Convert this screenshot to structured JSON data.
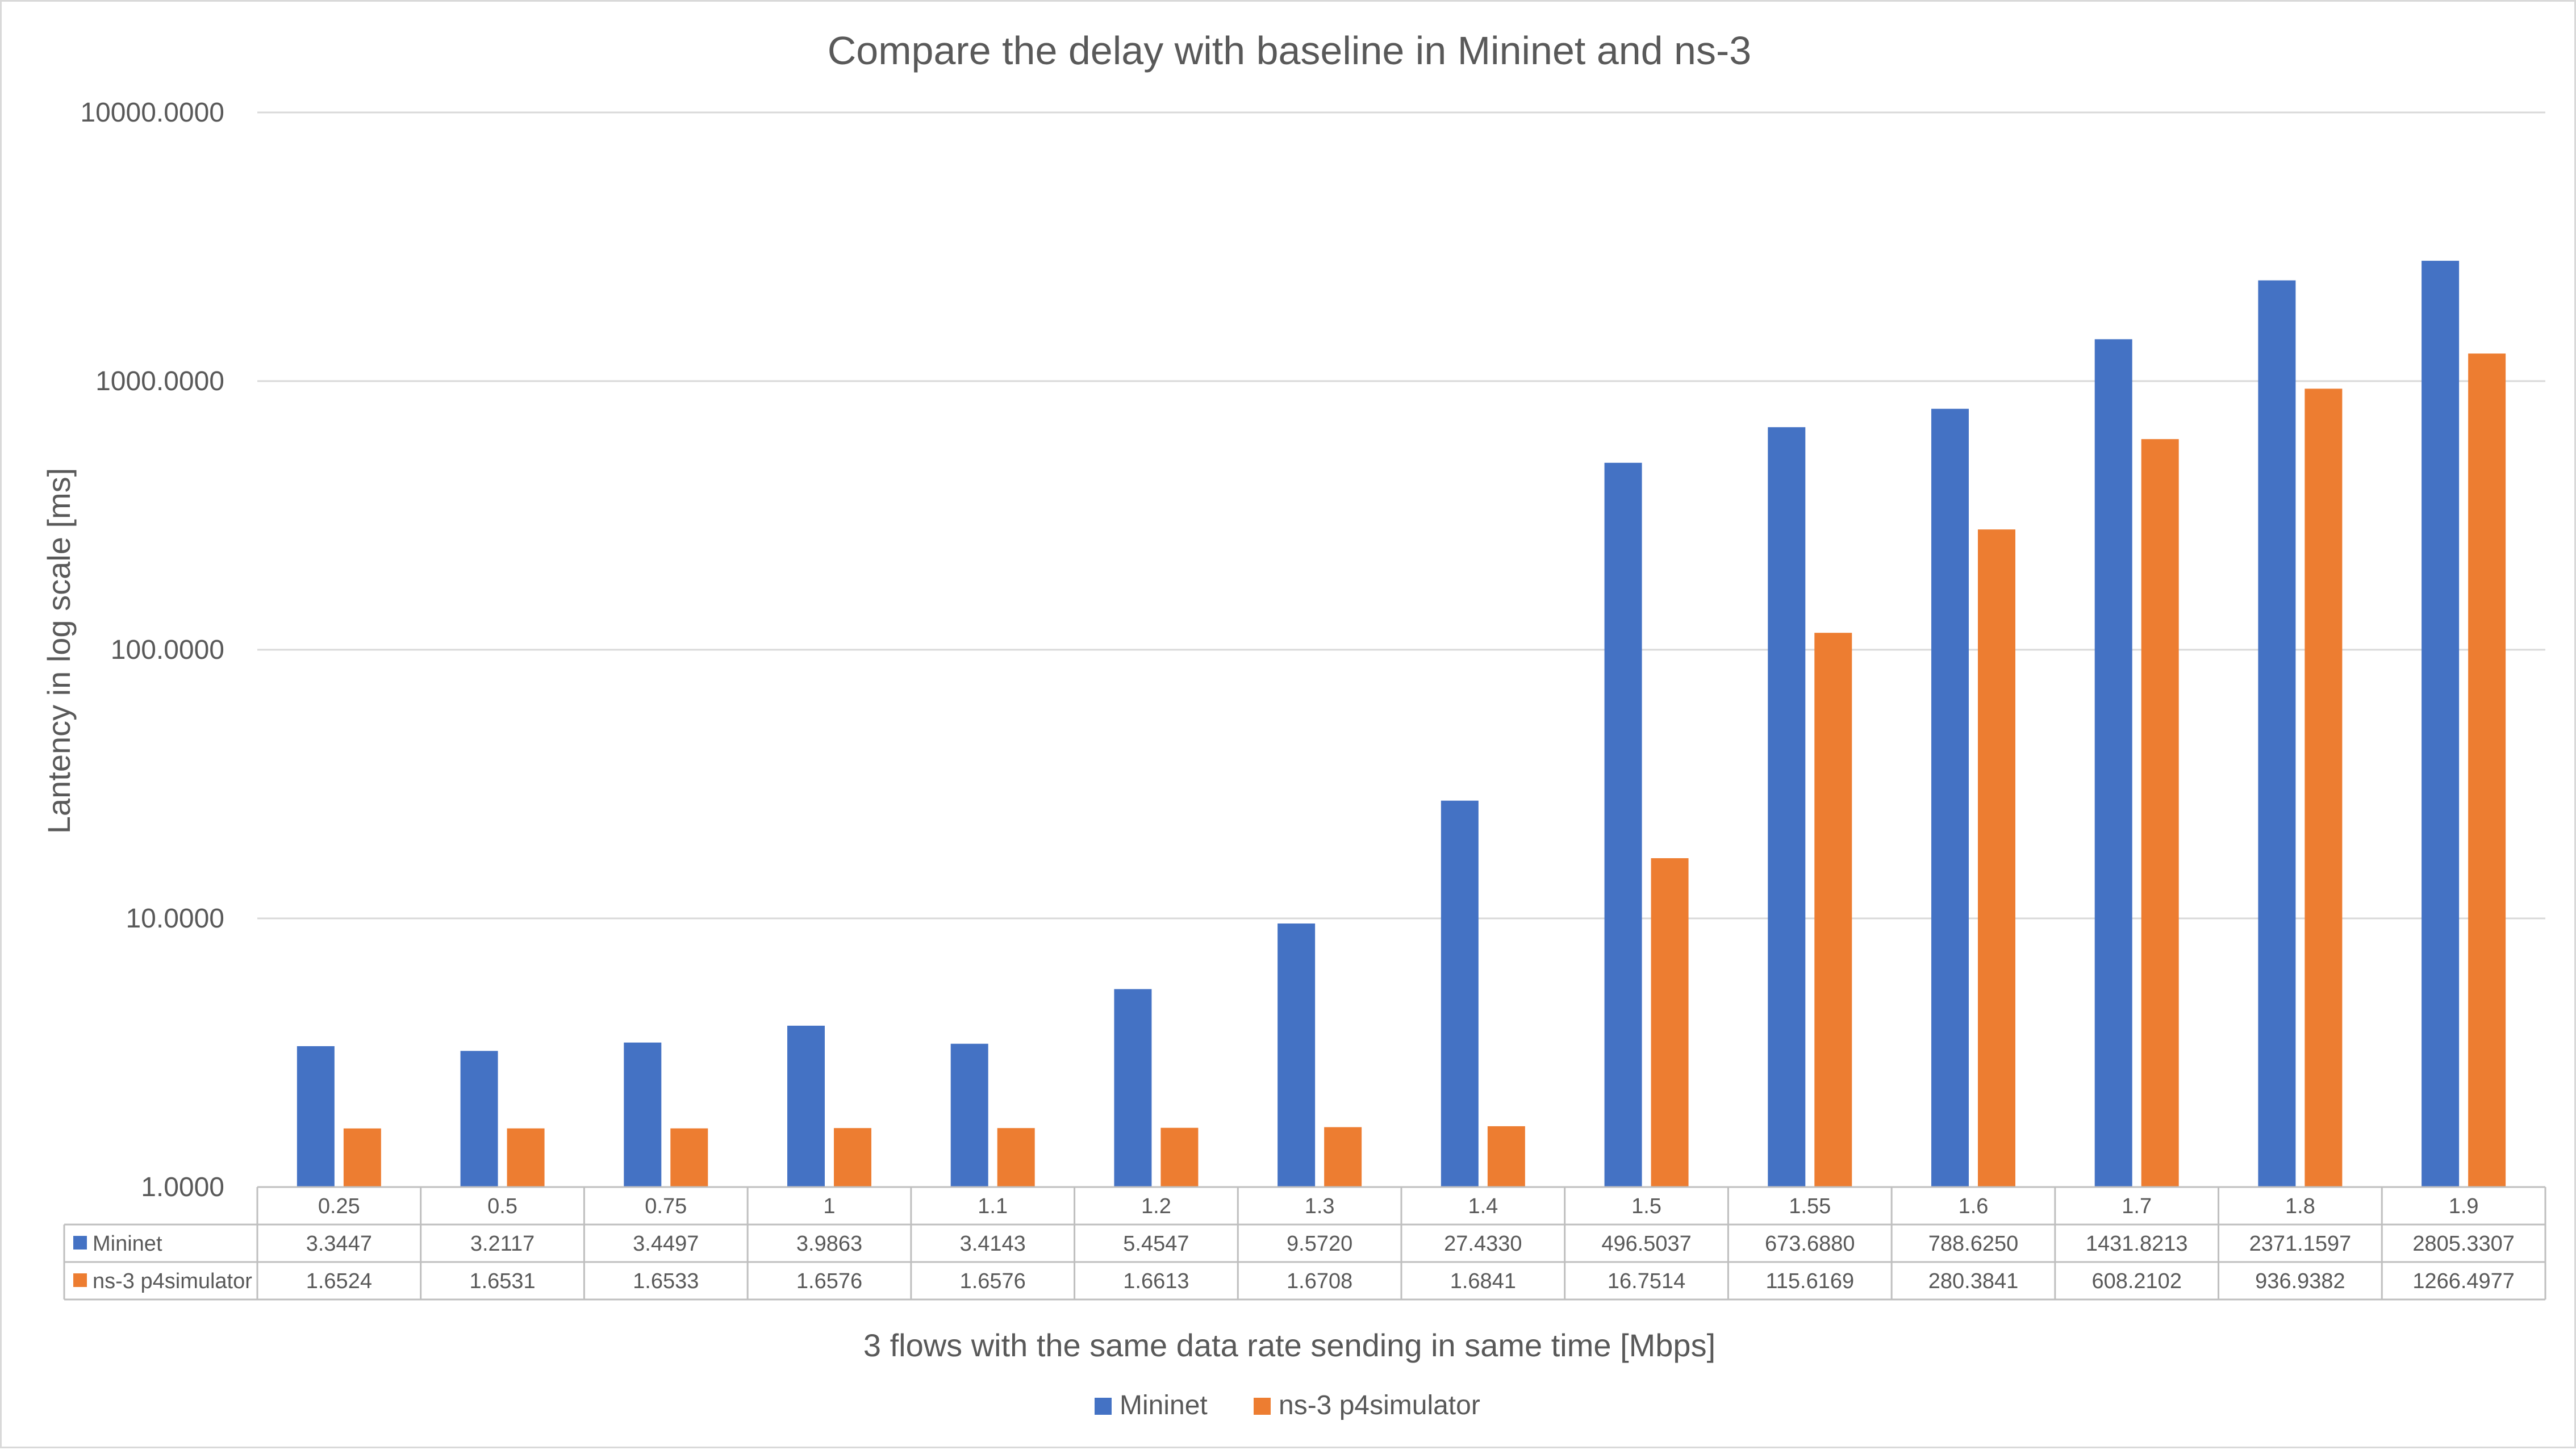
{
  "chart_data": {
    "type": "bar",
    "title": "Compare the delay with baseline in Mininet and ns-3",
    "xlabel": "3 flows with the same data rate sending in same time [Mbps]",
    "ylabel": "Lantency in log scale [ms]",
    "yscale": "log",
    "ylim": [
      1,
      10000
    ],
    "yticks": [
      "1.0000",
      "10.0000",
      "100.0000",
      "1000.0000",
      "10000.0000"
    ],
    "grid": true,
    "legend_position": "bottom",
    "data_table": true,
    "categories": [
      "0.25",
      "0.5",
      "0.75",
      "1",
      "1.1",
      "1.2",
      "1.3",
      "1.4",
      "1.5",
      "1.55",
      "1.6",
      "1.7",
      "1.8",
      "1.9"
    ],
    "series": [
      {
        "name": "Mininet",
        "color": "#4472c4",
        "values": [
          3.3447,
          3.2117,
          3.4497,
          3.9863,
          3.4143,
          5.4547,
          9.572,
          27.433,
          496.5037,
          673.688,
          788.625,
          1431.8213,
          2371.1597,
          2805.3307
        ],
        "labels": [
          "3.3447",
          "3.2117",
          "3.4497",
          "3.9863",
          "3.4143",
          "5.4547",
          "9.5720",
          "27.4330",
          "496.5037",
          "673.6880",
          "788.6250",
          "1431.8213",
          "2371.1597",
          "2805.3307"
        ]
      },
      {
        "name": "ns-3 p4simulator",
        "color": "#ed7d31",
        "values": [
          1.6524,
          1.6531,
          1.6533,
          1.6576,
          1.6576,
          1.6613,
          1.6708,
          1.6841,
          16.7514,
          115.6169,
          280.3841,
          608.2102,
          936.9382,
          1266.4977
        ],
        "labels": [
          "1.6524",
          "1.6531",
          "1.6533",
          "1.6576",
          "1.6576",
          "1.6613",
          "1.6708",
          "1.6841",
          "16.7514",
          "115.6169",
          "280.3841",
          "608.2102",
          "936.9382",
          "1266.4977"
        ]
      }
    ]
  }
}
